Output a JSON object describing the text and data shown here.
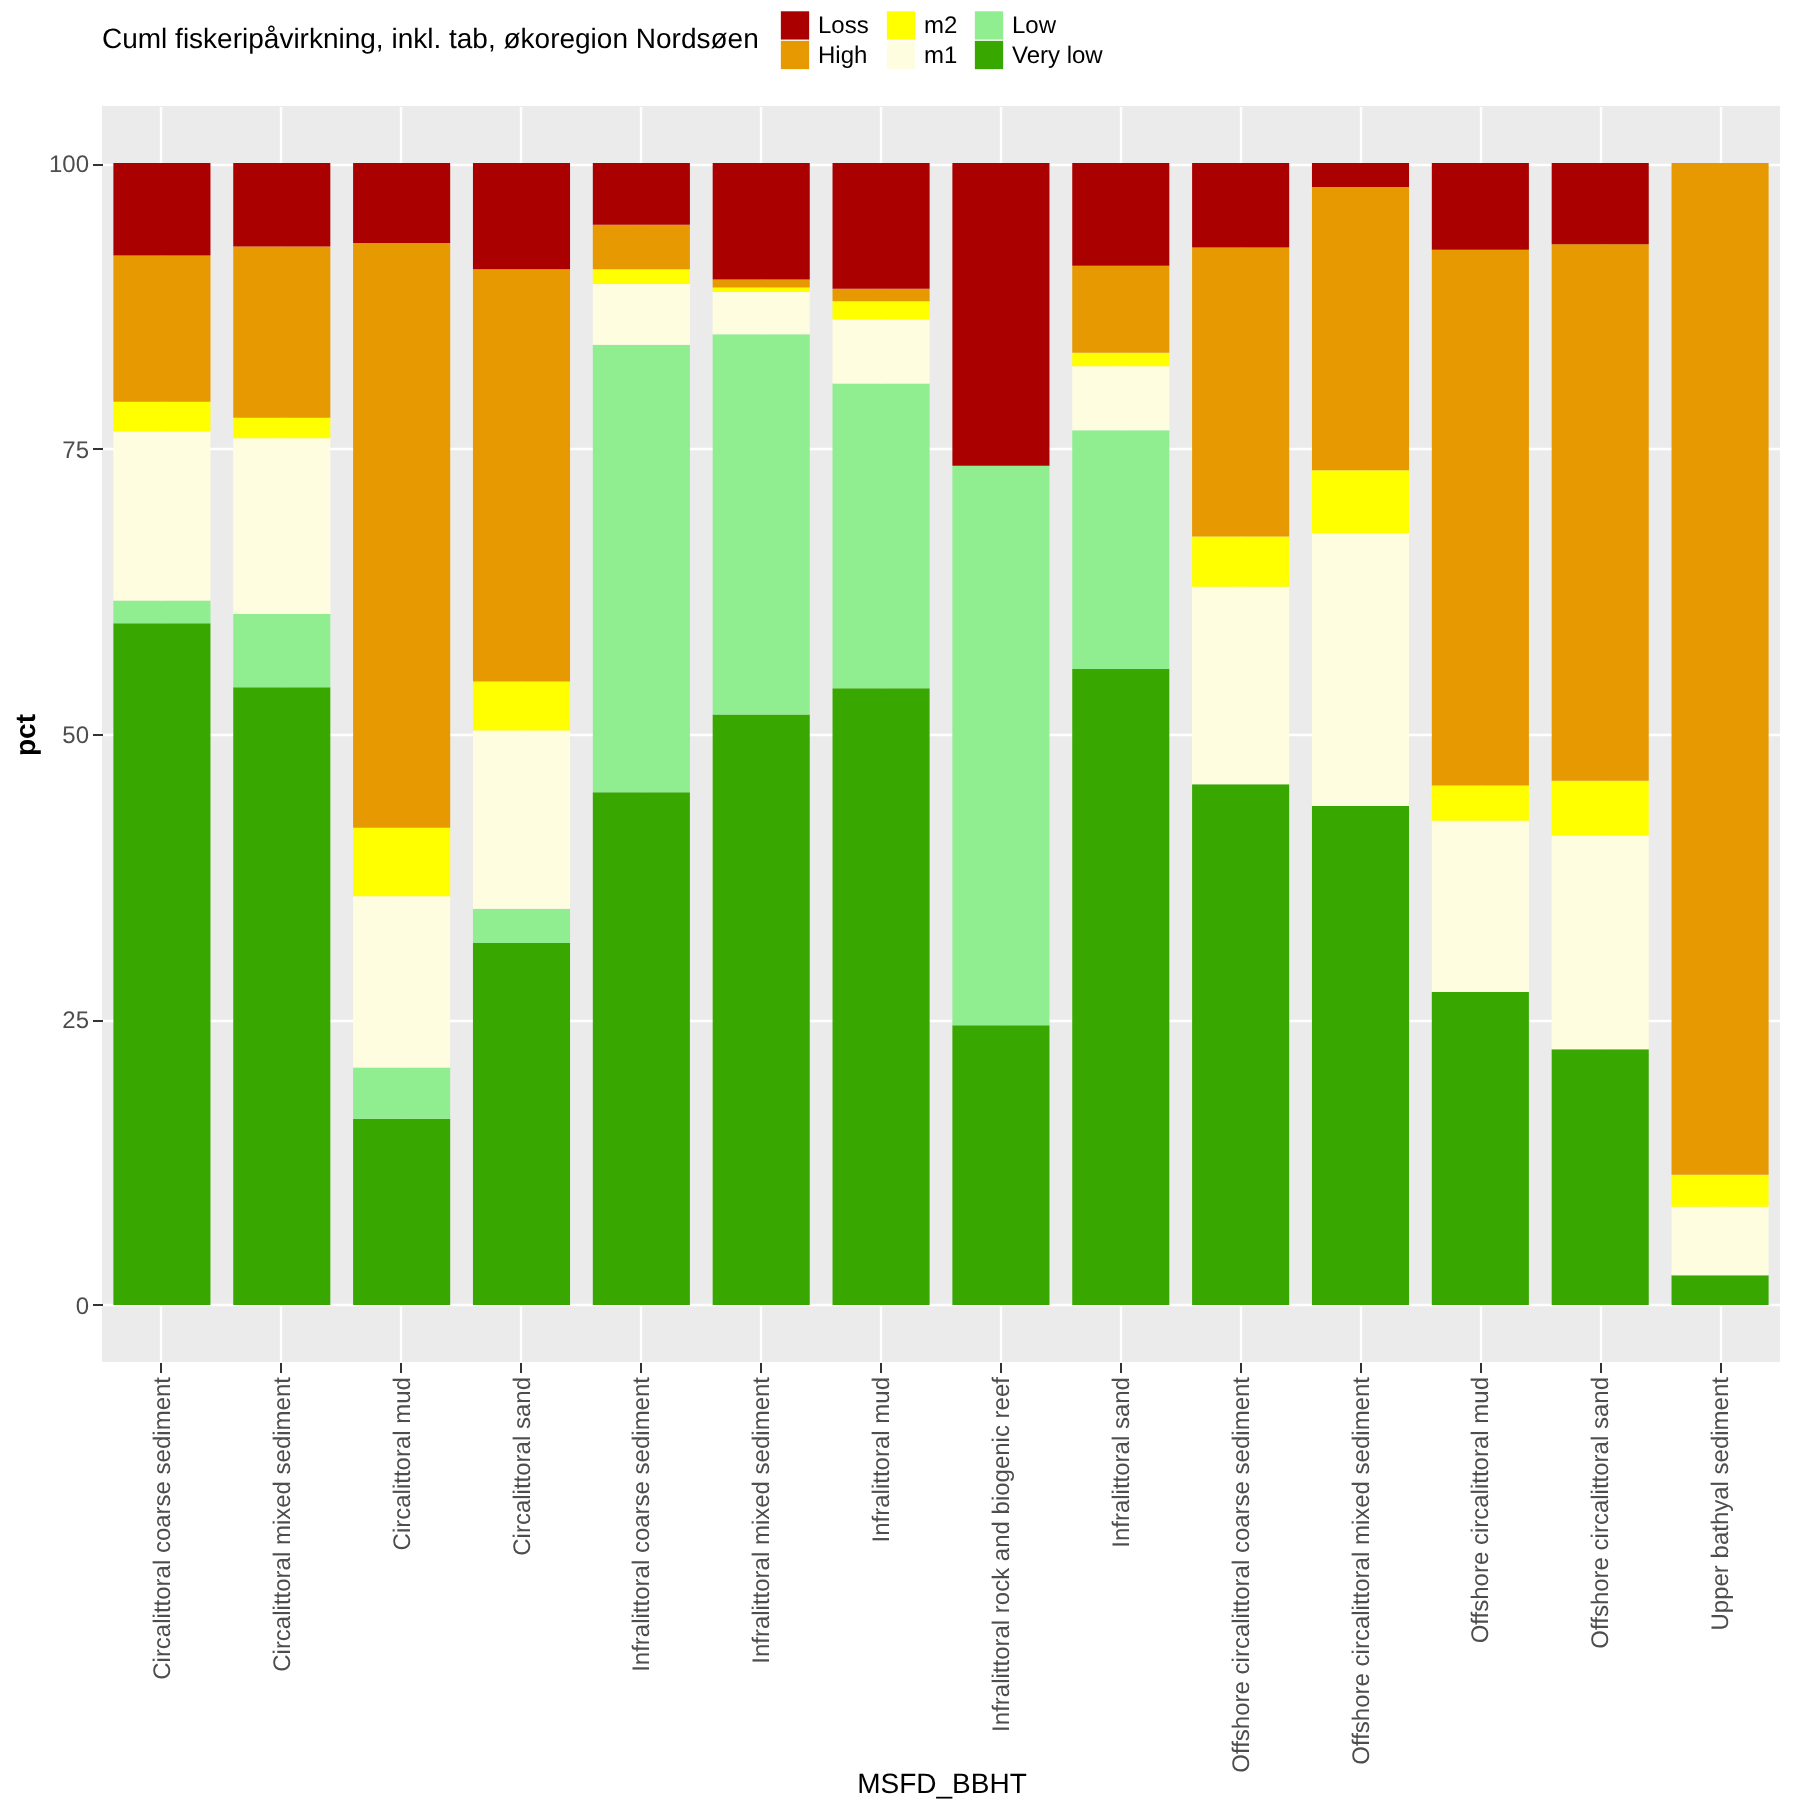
{
  "chart_data": {
    "type": "bar",
    "stacked": true,
    "xlabel": "MSFD_BBHT",
    "ylabel": "pct",
    "legend_title": "Cuml fiskeripåvirkning, inkl. tab, økoregion Nordsøen",
    "legend": "top",
    "categories": [
      "Circalittoral coarse sediment",
      "Circalittoral mixed sediment",
      "Circalittoral mud",
      "Circalittoral sand",
      "Infralittoral coarse sediment",
      "Infralittoral mixed sediment",
      "Infralittoral mud",
      "Infralittoral rock and biogenic reef",
      "Infralittoral sand",
      "Offshore circalittoral coarse sediment",
      "Offshore circalittoral mixed sediment",
      "Offshore circalittoral mud",
      "Offshore circalittoral sand",
      "Upper bathyal sediment"
    ],
    "series": [
      {
        "name": "Very low",
        "color": "#38a800",
        "values": [
          59.7,
          54.1,
          16.3,
          31.7,
          44.9,
          51.7,
          54.0,
          24.5,
          55.7,
          45.6,
          43.7,
          27.4,
          22.4,
          2.6
        ]
      },
      {
        "name": "Low",
        "color": "#90ee90",
        "values": [
          2.0,
          6.4,
          4.5,
          3.0,
          39.2,
          33.3,
          26.7,
          49.0,
          20.9,
          null,
          null,
          null,
          null,
          null
        ]
      },
      {
        "name": "m1",
        "color": "#fffde0",
        "values": [
          14.8,
          15.4,
          15.0,
          15.6,
          5.3,
          3.7,
          5.6,
          null,
          5.6,
          17.3,
          23.9,
          15.0,
          18.7,
          6.0
        ]
      },
      {
        "name": "m2",
        "color": "#ffff00",
        "values": [
          2.6,
          1.8,
          6.0,
          4.3,
          1.3,
          0.4,
          1.6,
          null,
          1.2,
          4.4,
          5.5,
          3.1,
          4.8,
          2.8
        ]
      },
      {
        "name": "High",
        "color": "#e69900",
        "values": [
          12.8,
          15.0,
          51.2,
          36.1,
          3.9,
          0.7,
          1.1,
          null,
          7.6,
          25.3,
          24.8,
          46.9,
          47.0,
          88.6
        ]
      },
      {
        "name": "Loss",
        "color": "#aa0000",
        "values": [
          8.1,
          7.3,
          7.0,
          9.3,
          5.4,
          10.2,
          11.0,
          26.5,
          9.0,
          7.4,
          2.1,
          7.6,
          7.1,
          null
        ]
      }
    ],
    "ylim": [
      -5,
      105
    ],
    "yticks": [
      0,
      25,
      50,
      75,
      100
    ],
    "grid": true
  }
}
